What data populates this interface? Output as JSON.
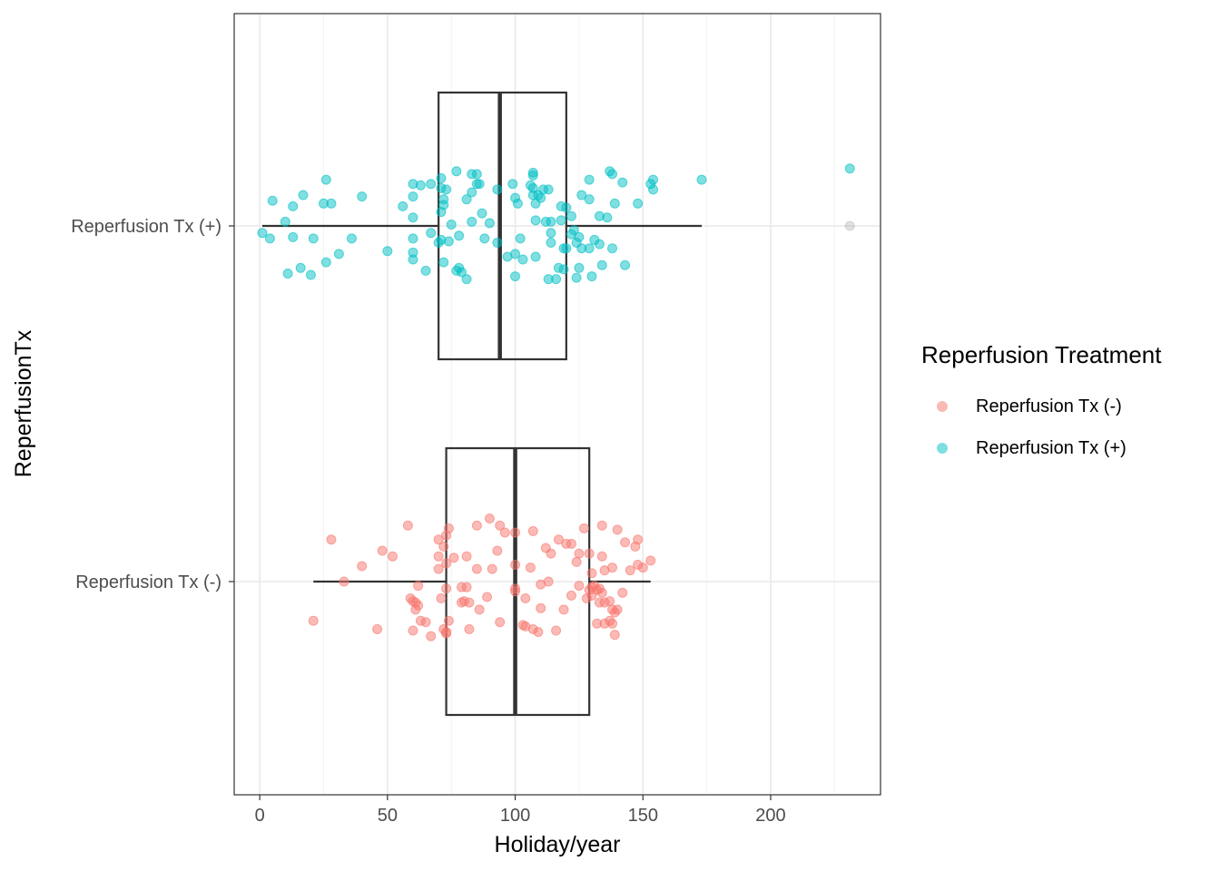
{
  "chart_data": {
    "type": "box",
    "xlabel": "Holiday/year",
    "ylabel": "ReperfusionTx",
    "xlim": [
      -10,
      243
    ],
    "x_ticks": [
      0,
      50,
      100,
      150,
      200
    ],
    "grid": true,
    "legend": {
      "title": "Reperfusion Treatment",
      "placement": "right"
    },
    "categories": [
      "Reperfusion Tx (-)",
      "Reperfusion Tx (+)"
    ],
    "series": [
      {
        "name": "Reperfusion Tx (-)",
        "color": "#F8766D",
        "box": {
          "whisker_low": 21,
          "q1": 73,
          "median": 100,
          "q3": 129,
          "whisker_high": 153
        },
        "outliers": [],
        "points": [
          [
            58,
            -0.4
          ],
          [
            70,
            -0.3
          ],
          [
            85,
            -0.4
          ],
          [
            90,
            -0.45
          ],
          [
            94,
            -0.4
          ],
          [
            74,
            -0.38
          ],
          [
            100,
            -0.35
          ],
          [
            127,
            -0.38
          ],
          [
            134,
            -0.4
          ],
          [
            140,
            -0.37
          ],
          [
            148,
            -0.3
          ],
          [
            96,
            -0.35
          ],
          [
            107,
            -0.36
          ],
          [
            28,
            -0.3
          ],
          [
            73,
            -0.33
          ],
          [
            117,
            -0.3
          ],
          [
            122,
            -0.27
          ],
          [
            143,
            -0.28
          ],
          [
            147,
            -0.25
          ],
          [
            72,
            -0.25
          ],
          [
            112,
            -0.24
          ],
          [
            93,
            -0.22
          ],
          [
            120,
            -0.27
          ],
          [
            48,
            -0.22
          ],
          [
            52,
            -0.18
          ],
          [
            70,
            -0.18
          ],
          [
            76,
            -0.17
          ],
          [
            81,
            -0.18
          ],
          [
            114,
            -0.2
          ],
          [
            125,
            -0.2
          ],
          [
            134,
            -0.18
          ],
          [
            129,
            -0.2
          ],
          [
            40,
            -0.11
          ],
          [
            70,
            -0.09
          ],
          [
            73,
            -0.13
          ],
          [
            85,
            -0.09
          ],
          [
            91,
            -0.09
          ],
          [
            100,
            -0.12
          ],
          [
            106,
            -0.1
          ],
          [
            124,
            -0.14
          ],
          [
            135,
            -0.08
          ],
          [
            138,
            -0.1
          ],
          [
            130,
            -0.06
          ],
          [
            145,
            -0.08
          ],
          [
            148,
            -0.12
          ],
          [
            153,
            -0.15
          ],
          [
            150,
            -0.1
          ],
          [
            73,
            0.05
          ],
          [
            79,
            0.04
          ],
          [
            100,
            0.05
          ],
          [
            100,
            0.07
          ],
          [
            110,
            0.02
          ],
          [
            113,
            0.0
          ],
          [
            125,
            0.03
          ],
          [
            130,
            0.04
          ],
          [
            133,
            0.05
          ],
          [
            142,
            0.08
          ],
          [
            132,
            0.06
          ],
          [
            131,
            0.03
          ],
          [
            33,
            0
          ],
          [
            62,
            0.03
          ],
          [
            81,
            0.04
          ],
          [
            129,
            0.06
          ],
          [
            134,
            0.08
          ],
          [
            130,
            0.1
          ],
          [
            59,
            0.12
          ],
          [
            71,
            0.12
          ],
          [
            89,
            0.11
          ],
          [
            104,
            0.12
          ],
          [
            122,
            0.1
          ],
          [
            128,
            0.12
          ],
          [
            135,
            0.15
          ],
          [
            137,
            0.14
          ],
          [
            60,
            0.14
          ],
          [
            61,
            0.15
          ],
          [
            80,
            0.14
          ],
          [
            82,
            0.15
          ],
          [
            79,
            0.15
          ],
          [
            133,
            0.15
          ],
          [
            61,
            0.2
          ],
          [
            62,
            0.17
          ],
          [
            86,
            0.2
          ],
          [
            110,
            0.19
          ],
          [
            119,
            0.2
          ],
          [
            138,
            0.2
          ],
          [
            140,
            0.2
          ],
          [
            139,
            0.22
          ],
          [
            21,
            0.28
          ],
          [
            63,
            0.28
          ],
          [
            65,
            0.29
          ],
          [
            74,
            0.28
          ],
          [
            94,
            0.29
          ],
          [
            103,
            0.31
          ],
          [
            135,
            0.3
          ],
          [
            137,
            0.28
          ],
          [
            138,
            0.3
          ],
          [
            46,
            0.34
          ],
          [
            60,
            0.35
          ],
          [
            72,
            0.34
          ],
          [
            73,
            0.36
          ],
          [
            82,
            0.34
          ],
          [
            107,
            0.34
          ],
          [
            109,
            0.36
          ],
          [
            116,
            0.35
          ],
          [
            132,
            0.3
          ],
          [
            67,
            0.39
          ],
          [
            73,
            0.37
          ],
          [
            139,
            0.38
          ],
          [
            104,
            0.32
          ]
        ]
      },
      {
        "name": "Reperfusion Tx (+)",
        "color": "#00BFC4",
        "box": {
          "whisker_low": 1,
          "q1": 70,
          "median": 94,
          "q3": 120,
          "whisker_high": 173
        },
        "outliers": [
          231
        ],
        "points": [
          [
            77,
            -0.39
          ],
          [
            137,
            -0.39
          ],
          [
            138,
            -0.37
          ],
          [
            83,
            -0.37
          ],
          [
            85,
            -0.37
          ],
          [
            107,
            -0.38
          ],
          [
            107,
            -0.36
          ],
          [
            71,
            -0.34
          ],
          [
            129,
            -0.33
          ],
          [
            142,
            -0.31
          ],
          [
            26,
            -0.33
          ],
          [
            154,
            -0.33
          ],
          [
            173,
            -0.33
          ],
          [
            153,
            -0.3
          ],
          [
            60,
            -0.3
          ],
          [
            63,
            -0.29
          ],
          [
            67,
            -0.3
          ],
          [
            85,
            -0.3
          ],
          [
            86,
            -0.3
          ],
          [
            99,
            -0.3
          ],
          [
            106,
            -0.29
          ],
          [
            71,
            -0.27
          ],
          [
            73,
            -0.26
          ],
          [
            93,
            -0.26
          ],
          [
            107,
            -0.27
          ],
          [
            113,
            -0.26
          ],
          [
            111,
            -0.26
          ],
          [
            154,
            -0.26
          ],
          [
            17,
            -0.22
          ],
          [
            40,
            -0.21
          ],
          [
            60,
            -0.21
          ],
          [
            83,
            -0.24
          ],
          [
            107,
            -0.22
          ],
          [
            110,
            -0.2
          ],
          [
            126,
            -0.22
          ],
          [
            129,
            -0.19
          ],
          [
            81,
            -0.19
          ],
          [
            72,
            -0.19
          ],
          [
            100,
            -0.2
          ],
          [
            101,
            -0.16
          ],
          [
            109,
            -0.22
          ],
          [
            108,
            -0.16
          ],
          [
            5,
            -0.18
          ],
          [
            25,
            -0.16
          ],
          [
            28,
            -0.16
          ],
          [
            13,
            -0.14
          ],
          [
            56,
            -0.14
          ],
          [
            72,
            -0.15
          ],
          [
            118,
            -0.14
          ],
          [
            120,
            -0.13
          ],
          [
            139,
            -0.16
          ],
          [
            148,
            -0.16
          ],
          [
            71,
            -0.1
          ],
          [
            87,
            -0.09
          ],
          [
            122,
            -0.07
          ],
          [
            133,
            -0.07
          ],
          [
            136,
            -0.06
          ],
          [
            60,
            -0.06
          ],
          [
            118,
            -0.04
          ],
          [
            108,
            -0.04
          ],
          [
            112,
            -0.03
          ],
          [
            83,
            -0.03
          ],
          [
            90,
            -0.02
          ],
          [
            75,
            -0.01
          ],
          [
            10,
            -0.03
          ],
          [
            114,
            -0.03
          ],
          [
            1,
            0.05
          ],
          [
            4,
            0.09
          ],
          [
            13,
            0.08
          ],
          [
            21,
            0.09
          ],
          [
            36,
            0.09
          ],
          [
            67,
            0.05
          ],
          [
            78,
            0.07
          ],
          [
            88,
            0.09
          ],
          [
            102,
            0.09
          ],
          [
            114,
            0.05
          ],
          [
            123,
            0.03
          ],
          [
            122,
            0.06
          ],
          [
            125,
            0.08
          ],
          [
            131,
            0.1
          ],
          [
            124,
            0.12
          ],
          [
            126,
            0.16
          ],
          [
            70,
            0.12
          ],
          [
            71,
            0.1
          ],
          [
            74,
            0.11
          ],
          [
            93,
            0.12
          ],
          [
            114,
            0.12
          ],
          [
            120,
            0.16
          ],
          [
            119,
            0.16
          ],
          [
            138,
            0.16
          ],
          [
            133,
            0.13
          ],
          [
            129,
            0.16
          ],
          [
            60,
            0.09
          ],
          [
            50,
            0.18
          ],
          [
            60,
            0.19
          ],
          [
            31,
            0.2
          ],
          [
            100,
            0.2
          ],
          [
            108,
            0.22
          ],
          [
            97,
            0.22
          ],
          [
            60,
            0.24
          ],
          [
            72,
            0.26
          ],
          [
            26,
            0.26
          ],
          [
            78,
            0.3
          ],
          [
            16,
            0.3
          ],
          [
            11,
            0.34
          ],
          [
            20,
            0.35
          ],
          [
            65,
            0.32
          ],
          [
            103,
            0.24
          ],
          [
            117,
            0.3
          ],
          [
            119,
            0.31
          ],
          [
            125,
            0.3
          ],
          [
            134,
            0.28
          ],
          [
            143,
            0.28
          ],
          [
            130,
            0.36
          ],
          [
            124,
            0.37
          ],
          [
            113,
            0.38
          ],
          [
            116,
            0.38
          ],
          [
            100,
            0.36
          ],
          [
            81,
            0.38
          ],
          [
            77,
            0.32
          ],
          [
            79,
            0.33
          ]
        ]
      }
    ]
  }
}
